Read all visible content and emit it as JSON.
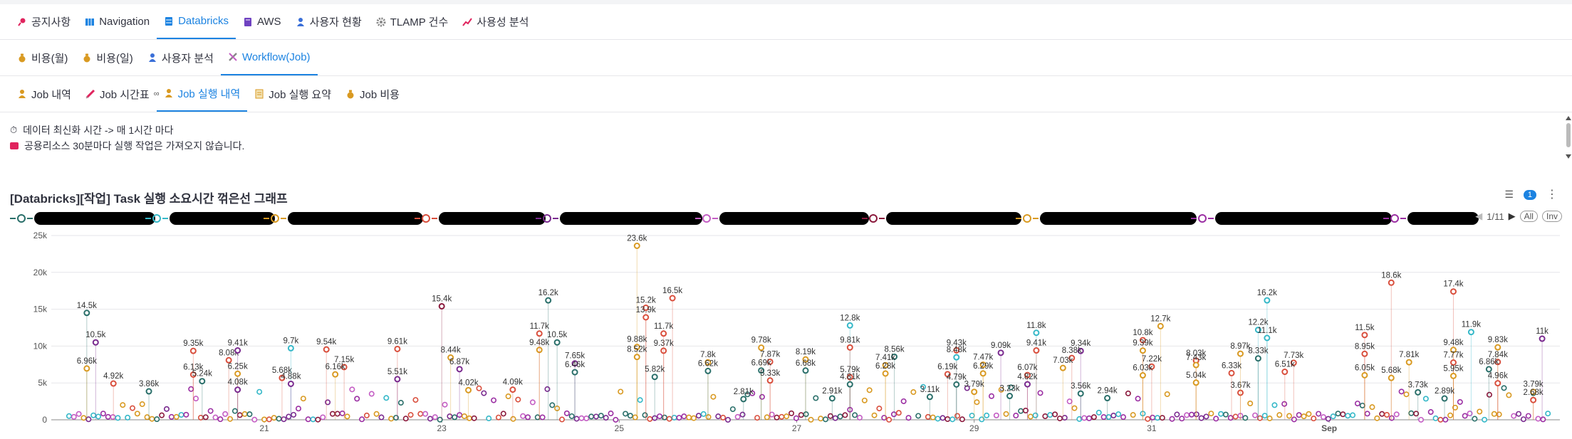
{
  "tabs_level1": [
    {
      "label": "공지사항",
      "icon": "pin-icon",
      "color": "#e0245e"
    },
    {
      "label": "Navigation",
      "icon": "map-icon",
      "color": "#1c83e1"
    },
    {
      "label": "Databricks",
      "icon": "database-icon",
      "color": "#1c83e1",
      "active": true
    },
    {
      "label": "AWS",
      "icon": "book-icon",
      "color": "#6f42c1"
    },
    {
      "label": "사용자 현황",
      "icon": "person-icon",
      "color": "#3a6fd8"
    },
    {
      "label": "TLAMP 건수",
      "icon": "gear-icon",
      "color": "#888888"
    },
    {
      "label": "사용성 분석",
      "icon": "chart-icon",
      "color": "#e0245e"
    }
  ],
  "tabs_level2": [
    {
      "label": "비용(월)",
      "icon": "money-bag-icon",
      "color": "#d99a22"
    },
    {
      "label": "비용(일)",
      "icon": "money-bag-icon",
      "color": "#d99a22"
    },
    {
      "label": "사용자 분석",
      "icon": "person-icon",
      "color": "#3a6fd8"
    },
    {
      "label": "Workflow(Job)",
      "icon": "tools-icon",
      "color": "#888888",
      "active": true
    }
  ],
  "tabs_level3": [
    {
      "label": "Job 내역",
      "icon": "person-icon",
      "color": "#d99a22"
    },
    {
      "label": "Job 시간표",
      "icon": "syringe-icon",
      "color": "#e0245e"
    },
    {
      "label": "Job 실행 내역",
      "icon": "person-icon",
      "color": "#d99a22",
      "active": true
    },
    {
      "label": "Job 실행 요약",
      "icon": "memo-icon",
      "color": "#d99a22"
    },
    {
      "label": "Job 비용",
      "icon": "money-bag-icon",
      "color": "#d99a22"
    }
  ],
  "info": {
    "line1": "데이터 최신화 시간 -> 매 1시간 마다",
    "line2": "공용리소스 30분마다 실행 작업은 가져오지 않습니다."
  },
  "chart_title": "[Databricks][작업] Task 실행 소요시간 꺾은선 그래프",
  "filter_badge": "1",
  "legend_pager": {
    "text": "1/11",
    "all": "All",
    "inv": "Inv"
  },
  "legend_colors": [
    "#2a6f6a",
    "#35b8c8",
    "#d99a22",
    "#d94f3d",
    "#7a2a8f",
    "#c45ec4",
    "#8b1a3d",
    "#d99a22",
    "#9b2fa3",
    "#9b2fa3"
  ],
  "colors": {
    "accent": "#1c83e1",
    "grid": "#e6e6ea",
    "axis": "#555555"
  },
  "chart_data": {
    "type": "scatter",
    "title": "[Databricks][작업] Task 실행 소요시간 꺾은선 그래프",
    "x_tick_labels": [
      "21",
      "23",
      "25",
      "27",
      "29",
      "31",
      "Sep"
    ],
    "y_tick_labels": [
      "0",
      "5k",
      "10k",
      "15k",
      "20k",
      "25k"
    ],
    "ylim": [
      0,
      25000
    ],
    "grid": true,
    "labeled_points": [
      {
        "day": 19.0,
        "value": 14500,
        "label": "14.5k",
        "color": "#2a6f6a"
      },
      {
        "day": 19.1,
        "value": 10500,
        "label": "10.5k",
        "color": "#7a2a8f"
      },
      {
        "day": 19.0,
        "value": 6960,
        "label": "6.96k",
        "color": "#d99a22"
      },
      {
        "day": 19.3,
        "value": 4920,
        "label": "4.92k",
        "color": "#d94f3d"
      },
      {
        "day": 19.7,
        "value": 3860,
        "label": "3.86k",
        "color": "#2a6f6a"
      },
      {
        "day": 20.2,
        "value": 9350,
        "label": "9.35k",
        "color": "#d94f3d"
      },
      {
        "day": 20.2,
        "value": 6130,
        "label": "6.13k",
        "color": "#d94f3d"
      },
      {
        "day": 20.3,
        "value": 5240,
        "label": "5.24k",
        "color": "#2a6f6a"
      },
      {
        "day": 20.6,
        "value": 8080,
        "label": "8.08k",
        "color": "#d94f3d"
      },
      {
        "day": 20.7,
        "value": 9410,
        "label": "9.41k",
        "color": "#7a2a8f"
      },
      {
        "day": 20.7,
        "value": 6250,
        "label": "6.25k",
        "color": "#d99a22"
      },
      {
        "day": 20.7,
        "value": 4080,
        "label": "4.08k",
        "color": "#7a2a8f"
      },
      {
        "day": 21.2,
        "value": 5680,
        "label": "5.68k",
        "color": "#d94f3d"
      },
      {
        "day": 21.3,
        "value": 9710,
        "label": "9.7k",
        "color": "#35b8c8"
      },
      {
        "day": 21.3,
        "value": 4880,
        "label": "4.88k",
        "color": "#7a2a8f"
      },
      {
        "day": 21.7,
        "value": 9540,
        "label": "9.54k",
        "color": "#d94f3d"
      },
      {
        "day": 21.9,
        "value": 7150,
        "label": "7.15k",
        "color": "#d94f3d"
      },
      {
        "day": 21.8,
        "value": 6160,
        "label": "6.16k",
        "color": "#d99a22"
      },
      {
        "day": 22.5,
        "value": 9610,
        "label": "9.61k",
        "color": "#d94f3d"
      },
      {
        "day": 22.5,
        "value": 5510,
        "label": "5.51k",
        "color": "#7a2a8f"
      },
      {
        "day": 23.0,
        "value": 15400,
        "label": "15.4k",
        "color": "#8b1a3d"
      },
      {
        "day": 23.1,
        "value": 8440,
        "label": "8.44k",
        "color": "#d99a22"
      },
      {
        "day": 23.2,
        "value": 6870,
        "label": "6.87k",
        "color": "#7a2a8f"
      },
      {
        "day": 23.3,
        "value": 4020,
        "label": "4.02k",
        "color": "#d99a22"
      },
      {
        "day": 23.8,
        "value": 4090,
        "label": "4.09k",
        "color": "#d94f3d"
      },
      {
        "day": 24.1,
        "value": 9480,
        "label": "9.48k",
        "color": "#d99a22"
      },
      {
        "day": 24.2,
        "value": 16200,
        "label": "16.2k",
        "color": "#2a6f6a"
      },
      {
        "day": 24.1,
        "value": 11700,
        "label": "11.7k",
        "color": "#d94f3d"
      },
      {
        "day": 24.3,
        "value": 10500,
        "label": "10.5k",
        "color": "#2a6f6a"
      },
      {
        "day": 24.5,
        "value": 7650,
        "label": "7.65k",
        "color": "#7a2a8f"
      },
      {
        "day": 24.5,
        "value": 6460,
        "label": "6.46k",
        "color": "#2a6f6a"
      },
      {
        "day": 25.2,
        "value": 23600,
        "label": "23.6k",
        "color": "#d99a22"
      },
      {
        "day": 25.3,
        "value": 15200,
        "label": "15.2k",
        "color": "#d94f3d"
      },
      {
        "day": 25.3,
        "value": 13900,
        "label": "13.9k",
        "color": "#d94f3d"
      },
      {
        "day": 25.6,
        "value": 16500,
        "label": "16.5k",
        "color": "#d94f3d"
      },
      {
        "day": 25.2,
        "value": 9880,
        "label": "9.88k",
        "color": "#d99a22"
      },
      {
        "day": 25.2,
        "value": 8520,
        "label": "8.52k",
        "color": "#d99a22"
      },
      {
        "day": 25.5,
        "value": 9370,
        "label": "9.37k",
        "color": "#d94f3d"
      },
      {
        "day": 25.5,
        "value": 11700,
        "label": "11.7k",
        "color": "#d94f3d"
      },
      {
        "day": 25.4,
        "value": 5820,
        "label": "5.82k",
        "color": "#2a6f6a"
      },
      {
        "day": 26.0,
        "value": 7800,
        "label": "7.8k",
        "color": "#d99a22"
      },
      {
        "day": 26.0,
        "value": 6620,
        "label": "6.62k",
        "color": "#2a6f6a"
      },
      {
        "day": 26.4,
        "value": 2810,
        "label": "2.81k",
        "color": "#2a6f6a"
      },
      {
        "day": 26.6,
        "value": 9780,
        "label": "9.78k",
        "color": "#d99a22"
      },
      {
        "day": 26.7,
        "value": 7870,
        "label": "7.87k",
        "color": "#d94f3d"
      },
      {
        "day": 26.6,
        "value": 6690,
        "label": "6.69k",
        "color": "#2a6f6a"
      },
      {
        "day": 26.7,
        "value": 5330,
        "label": "5.33k",
        "color": "#d94f3d"
      },
      {
        "day": 27.1,
        "value": 8190,
        "label": "8.19k",
        "color": "#d99a22"
      },
      {
        "day": 27.1,
        "value": 6680,
        "label": "6.68k",
        "color": "#2a6f6a"
      },
      {
        "day": 27.6,
        "value": 12800,
        "label": "12.8k",
        "color": "#35b8c8"
      },
      {
        "day": 27.6,
        "value": 9810,
        "label": "9.81k",
        "color": "#d94f3d"
      },
      {
        "day": 27.6,
        "value": 5790,
        "label": "5.79k",
        "color": "#d94f3d"
      },
      {
        "day": 27.6,
        "value": 4810,
        "label": "4.81k",
        "color": "#2a6f6a"
      },
      {
        "day": 27.4,
        "value": 2910,
        "label": "2.91k",
        "color": "#2a6f6a"
      },
      {
        "day": 28.1,
        "value": 8560,
        "label": "8.56k",
        "color": "#2a6f6a"
      },
      {
        "day": 28.0,
        "value": 7410,
        "label": "7.41k",
        "color": "#d99a22"
      },
      {
        "day": 28.0,
        "value": 6280,
        "label": "6.28k",
        "color": "#d99a22"
      },
      {
        "day": 28.8,
        "value": 9430,
        "label": "9.43k",
        "color": "#d94f3d"
      },
      {
        "day": 28.8,
        "value": 8480,
        "label": "8.48k",
        "color": "#35b8c8"
      },
      {
        "day": 28.7,
        "value": 6190,
        "label": "6.19k",
        "color": "#d94f3d"
      },
      {
        "day": 28.8,
        "value": 4790,
        "label": "4.79k",
        "color": "#2a6f6a"
      },
      {
        "day": 28.5,
        "value": 3110,
        "label": "3.11k",
        "color": "#2a6f6a"
      },
      {
        "day": 29.3,
        "value": 9090,
        "label": "9.09k",
        "color": "#7a2a8f"
      },
      {
        "day": 29.1,
        "value": 7470,
        "label": "7.47k",
        "color": "#d99a22"
      },
      {
        "day": 29.1,
        "value": 6290,
        "label": "6.29k",
        "color": "#d99a22"
      },
      {
        "day": 29.0,
        "value": 3790,
        "label": "3.79k",
        "color": "#d99a22"
      },
      {
        "day": 29.7,
        "value": 11800,
        "label": "11.8k",
        "color": "#35b8c8"
      },
      {
        "day": 29.7,
        "value": 9410,
        "label": "9.41k",
        "color": "#d94f3d"
      },
      {
        "day": 29.6,
        "value": 6070,
        "label": "6.07k",
        "color": "#d94f3d"
      },
      {
        "day": 29.6,
        "value": 4820,
        "label": "4.82k",
        "color": "#7a2a8f"
      },
      {
        "day": 29.4,
        "value": 3230,
        "label": "3.23k",
        "color": "#2a6f6a"
      },
      {
        "day": 30.2,
        "value": 9340,
        "label": "9.34k",
        "color": "#7a2a8f"
      },
      {
        "day": 30.1,
        "value": 8380,
        "label": "8.38k",
        "color": "#d94f3d"
      },
      {
        "day": 30.0,
        "value": 7030,
        "label": "7.03k",
        "color": "#d99a22"
      },
      {
        "day": 30.2,
        "value": 3560,
        "label": "3.56k",
        "color": "#2a6f6a"
      },
      {
        "day": 31.1,
        "value": 12700,
        "label": "12.7k",
        "color": "#d99a22"
      },
      {
        "day": 30.9,
        "value": 10800,
        "label": "10.8k",
        "color": "#d94f3d"
      },
      {
        "day": 30.9,
        "value": 9390,
        "label": "9.39k",
        "color": "#d99a22"
      },
      {
        "day": 31.0,
        "value": 7220,
        "label": "7.22k",
        "color": "#d94f3d"
      },
      {
        "day": 30.9,
        "value": 6030,
        "label": "6.03k",
        "color": "#d99a22"
      },
      {
        "day": 30.5,
        "value": 2940,
        "label": "2.94k",
        "color": "#2a6f6a"
      },
      {
        "day": 31.5,
        "value": 8030,
        "label": "8.03k",
        "color": "#d94f3d"
      },
      {
        "day": 31.5,
        "value": 7430,
        "label": "7.43k",
        "color": "#d99a22"
      },
      {
        "day": 31.5,
        "value": 5040,
        "label": "5.04k",
        "color": "#d99a22"
      },
      {
        "day": 32.0,
        "value": 3670,
        "label": "3.67k",
        "color": "#d94f3d"
      },
      {
        "day": 32.3,
        "value": 16200,
        "label": "16.2k",
        "color": "#35b8c8"
      },
      {
        "day": 32.2,
        "value": 12200,
        "label": "12.2k",
        "color": "#35b8c8"
      },
      {
        "day": 32.3,
        "value": 11100,
        "label": "11.1k",
        "color": "#35b8c8"
      },
      {
        "day": 32.2,
        "value": 8330,
        "label": "8.33k",
        "color": "#2a6f6a"
      },
      {
        "day": 32.0,
        "value": 8970,
        "label": "8.97k",
        "color": "#d99a22"
      },
      {
        "day": 31.9,
        "value": 6330,
        "label": "6.33k",
        "color": "#d94f3d"
      },
      {
        "day": 32.6,
        "value": 7730,
        "label": "7.73k",
        "color": "#d94f3d"
      },
      {
        "day": 32.5,
        "value": 6510,
        "label": "6.51k",
        "color": "#d94f3d"
      },
      {
        "day": 33.4,
        "value": 11500,
        "label": "11.5k",
        "color": "#d94f3d"
      },
      {
        "day": 33.4,
        "value": 8950,
        "label": "8.95k",
        "color": "#d94f3d"
      },
      {
        "day": 33.4,
        "value": 6050,
        "label": "6.05k",
        "color": "#d99a22"
      },
      {
        "day": 33.7,
        "value": 18600,
        "label": "18.6k",
        "color": "#d94f3d"
      },
      {
        "day": 33.9,
        "value": 7810,
        "label": "7.81k",
        "color": "#d99a22"
      },
      {
        "day": 33.7,
        "value": 5680,
        "label": "5.68k",
        "color": "#d99a22"
      },
      {
        "day": 34.0,
        "value": 3730,
        "label": "3.73k",
        "color": "#2a6f6a"
      },
      {
        "day": 34.4,
        "value": 17400,
        "label": "17.4k",
        "color": "#d94f3d"
      },
      {
        "day": 34.6,
        "value": 11900,
        "label": "11.9k",
        "color": "#35b8c8"
      },
      {
        "day": 34.4,
        "value": 9480,
        "label": "9.48k",
        "color": "#d99a22"
      },
      {
        "day": 34.4,
        "value": 7770,
        "label": "7.77k",
        "color": "#d94f3d"
      },
      {
        "day": 34.4,
        "value": 5950,
        "label": "5.95k",
        "color": "#d99a22"
      },
      {
        "day": 34.3,
        "value": 2890,
        "label": "2.89k",
        "color": "#2a6f6a"
      },
      {
        "day": 34.9,
        "value": 9830,
        "label": "9.83k",
        "color": "#d99a22"
      },
      {
        "day": 34.9,
        "value": 7840,
        "label": "7.84k",
        "color": "#d94f3d"
      },
      {
        "day": 34.8,
        "value": 6860,
        "label": "6.86k",
        "color": "#2a6f6a"
      },
      {
        "day": 34.9,
        "value": 4960,
        "label": "4.96k",
        "color": "#d94f3d"
      },
      {
        "day": 35.4,
        "value": 11000,
        "label": "11k",
        "color": "#7a2a8f"
      },
      {
        "day": 35.3,
        "value": 3790,
        "label": "3.79k",
        "color": "#d99a22"
      },
      {
        "day": 35.3,
        "value": 2680,
        "label": "2.68k",
        "color": "#d94f3d"
      }
    ]
  }
}
